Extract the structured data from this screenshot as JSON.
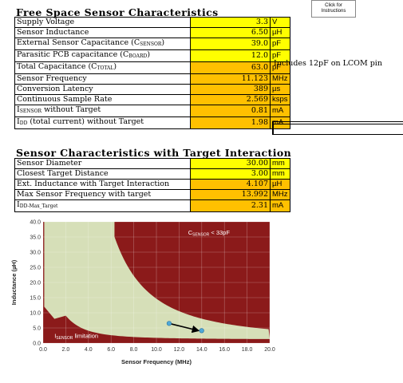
{
  "instructions_button": "Click for Instructions",
  "free_space": {
    "title": "Free Space Sensor Characteristics",
    "rows": [
      {
        "label": "Supply Voltage",
        "value": "3.3",
        "unit": "V",
        "fill": "yellow"
      },
      {
        "label": "Sensor Inductance",
        "value": "6.50",
        "unit": "µH",
        "fill": "yellow"
      },
      {
        "label": "External Sensor Capacitance (C",
        "sub": "SENSOR",
        "label_end": ")",
        "value": "39.0",
        "unit": "pF",
        "fill": "yellow"
      },
      {
        "label": "Parasitic PCB capacitance (C",
        "sub": "BOARD",
        "label_end": ")",
        "value": "12.0",
        "unit": "pF",
        "fill": "yellow"
      },
      {
        "label": "Total Capacitance (C",
        "sub": "TOTAL",
        "label_end": ")",
        "value": "63.0",
        "unit": "pF",
        "fill": "orange",
        "note": "Includes 12pF on LCOM pin"
      },
      {
        "label": "Sensor Frequency",
        "value": "11.123",
        "unit": "MHz",
        "fill": "orange"
      },
      {
        "label": "Conversion Latency",
        "value": "389",
        "unit": "µs",
        "fill": "orange"
      },
      {
        "label": "Continuous Sample Rate",
        "value": "2.569",
        "unit": "ksps",
        "fill": "orange"
      },
      {
        "label": "I",
        "sub": "SENSOR",
        "label_end": " without Target",
        "value": "0.81",
        "unit": "mA",
        "fill": "orange"
      },
      {
        "label": "I",
        "sub": "DD",
        "label_end": " (total current) without Target",
        "value": "1.98",
        "unit": "mA",
        "fill": "orange"
      }
    ]
  },
  "target": {
    "title": "Sensor Characteristics with Target Interaction",
    "rows": [
      {
        "label": "Sensor Diameter",
        "value": "30.00",
        "unit": "mm",
        "fill": "yellow"
      },
      {
        "label": "Closest Target Distance",
        "value": "3.00",
        "unit": "mm",
        "fill": "yellow"
      },
      {
        "label": "Ext. Inductance with Target Interaction",
        "value": "4.107",
        "unit": "µH",
        "fill": "orange"
      },
      {
        "label": "Max Sensor Frequency with target",
        "value": "13.992",
        "unit": "MHz",
        "fill": "orange"
      },
      {
        "label": "I",
        "sub": "DD-Max_Target",
        "label_end": "",
        "value": "2.31",
        "unit": "mA",
        "fill": "orange"
      }
    ]
  },
  "chart_data": {
    "type": "area",
    "xlabel": "Sensor Frequency (MHz)",
    "ylabel": "Inductance (µH)",
    "xlim": [
      0,
      20
    ],
    "ylim": [
      0,
      40
    ],
    "x_ticks": [
      "0.0",
      "2.0",
      "4.0",
      "6.0",
      "8.0",
      "10.0",
      "12.0",
      "14.0",
      "16.0",
      "18.0",
      "20.0"
    ],
    "y_ticks": [
      "0.0",
      "5.0",
      "10.0",
      "15.0",
      "20.0",
      "25.0",
      "30.0",
      "35.0",
      "40.0"
    ],
    "annotations": [
      {
        "text_main": "C",
        "text_sub": "SENSOR",
        "text_end": " < 33pF"
      },
      {
        "text_main": "I",
        "text_sub": "SENSOR",
        "text_end": " limitation"
      }
    ],
    "points": [
      {
        "x": 11.123,
        "y": 6.5
      },
      {
        "x": 13.992,
        "y": 4.107
      }
    ],
    "colors": {
      "region": "#8b1a1a",
      "valid": "#d6dfb8",
      "point": "#4fa8d8",
      "arrow": "#000000"
    }
  }
}
